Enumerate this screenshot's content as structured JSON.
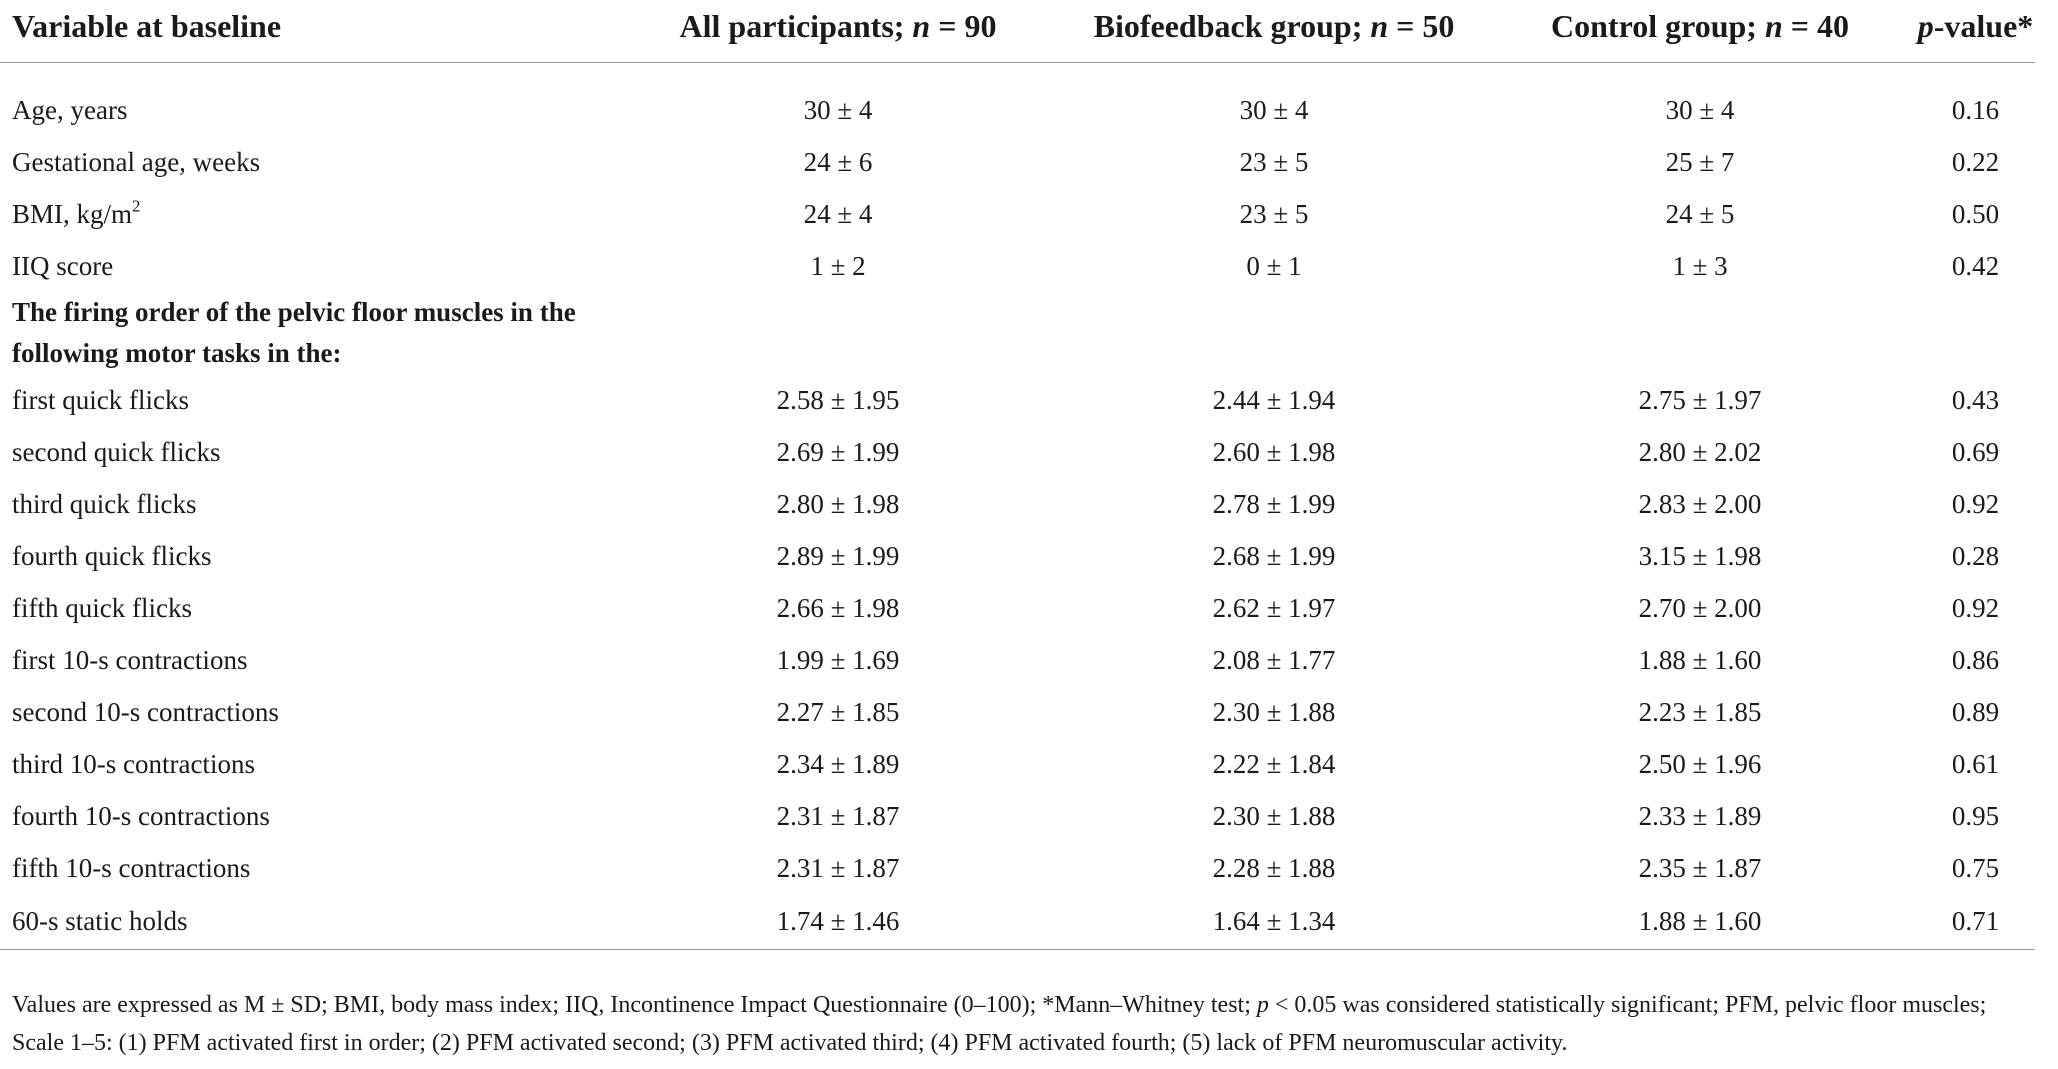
{
  "table": {
    "headers": {
      "variable": "Variable at baseline",
      "all_label": "All participants; ",
      "all_n": "n",
      "all_count": " = 90",
      "bio_label": "Biofeedback group; ",
      "bio_n": "n",
      "bio_count": " = 50",
      "control_label": "Control group; ",
      "control_n": "n",
      "control_count": " = 40",
      "p_italic": "p",
      "p_rest": "-value*"
    },
    "baseline_rows": [
      {
        "label": "Age, years",
        "all": "30 ± 4",
        "bio": "30 ± 4",
        "control": "30 ± 4",
        "p": "0.16"
      },
      {
        "label": "Gestational age, weeks",
        "all": "24 ± 6",
        "bio": "23 ± 5",
        "control": "25 ± 7",
        "p": "0.22"
      },
      {
        "label": "BMI, kg/m",
        "label_sup": "2",
        "all": "24 ± 4",
        "bio": "23 ± 5",
        "control": "24 ± 5",
        "p": "0.50"
      },
      {
        "label": "IIQ score",
        "all": "1 ± 2",
        "bio": "0 ± 1",
        "control": "1 ± 3",
        "p": "0.42"
      }
    ],
    "section_title": "The firing order of the pelvic floor muscles in the following motor tasks in the:",
    "firing_rows": [
      {
        "label": "first quick flicks",
        "all": "2.58 ± 1.95",
        "bio": "2.44 ± 1.94",
        "control": "2.75 ± 1.97",
        "p": "0.43"
      },
      {
        "label": "second quick flicks",
        "all": "2.69 ± 1.99",
        "bio": "2.60 ± 1.98",
        "control": "2.80 ± 2.02",
        "p": "0.69"
      },
      {
        "label": "third quick flicks",
        "all": "2.80 ± 1.98",
        "bio": "2.78 ± 1.99",
        "control": "2.83 ± 2.00",
        "p": "0.92"
      },
      {
        "label": "fourth quick flicks",
        "all": "2.89 ± 1.99",
        "bio": "2.68 ± 1.99",
        "control": "3.15 ± 1.98",
        "p": "0.28"
      },
      {
        "label": "fifth quick flicks",
        "all": "2.66 ± 1.98",
        "bio": "2.62 ± 1.97",
        "control": "2.70 ± 2.00",
        "p": "0.92"
      },
      {
        "label": "first 10-s contractions",
        "all": "1.99 ± 1.69",
        "bio": "2.08 ± 1.77",
        "control": "1.88 ± 1.60",
        "p": "0.86"
      },
      {
        "label": "second 10-s contractions",
        "all": "2.27 ± 1.85",
        "bio": "2.30 ± 1.88",
        "control": "2.23 ± 1.85",
        "p": "0.89"
      },
      {
        "label": "third 10-s contractions",
        "all": "2.34 ± 1.89",
        "bio": "2.22 ± 1.84",
        "control": "2.50 ± 1.96",
        "p": "0.61"
      },
      {
        "label": "fourth 10-s contractions",
        "all": "2.31 ± 1.87",
        "bio": "2.30 ± 1.88",
        "control": "2.33 ± 1.89",
        "p": "0.95"
      },
      {
        "label": "fifth 10-s contractions",
        "all": "2.31 ± 1.87",
        "bio": "2.28 ± 1.88",
        "control": "2.35 ± 1.87",
        "p": "0.75"
      },
      {
        "label": "60-s static holds",
        "all": "1.74 ± 1.46",
        "bio": "1.64 ± 1.34",
        "control": "1.88 ± 1.60",
        "p": "0.71"
      }
    ]
  },
  "footnote": {
    "part1": "Values are expressed as M ± SD; BMI, body mass index; IIQ, Incontinence Impact Questionnaire (0–100); *Mann–Whitney test; ",
    "p_italic": "p",
    "part2": " < 0.05 was considered statistically significant; PFM, pelvic floor muscles; Scale 1–5: (1) PFM activated first in order; (2) PFM activated second; (3) PFM activated third; (4) PFM activated fourth; (5) lack of PFM neuromuscular activity."
  }
}
